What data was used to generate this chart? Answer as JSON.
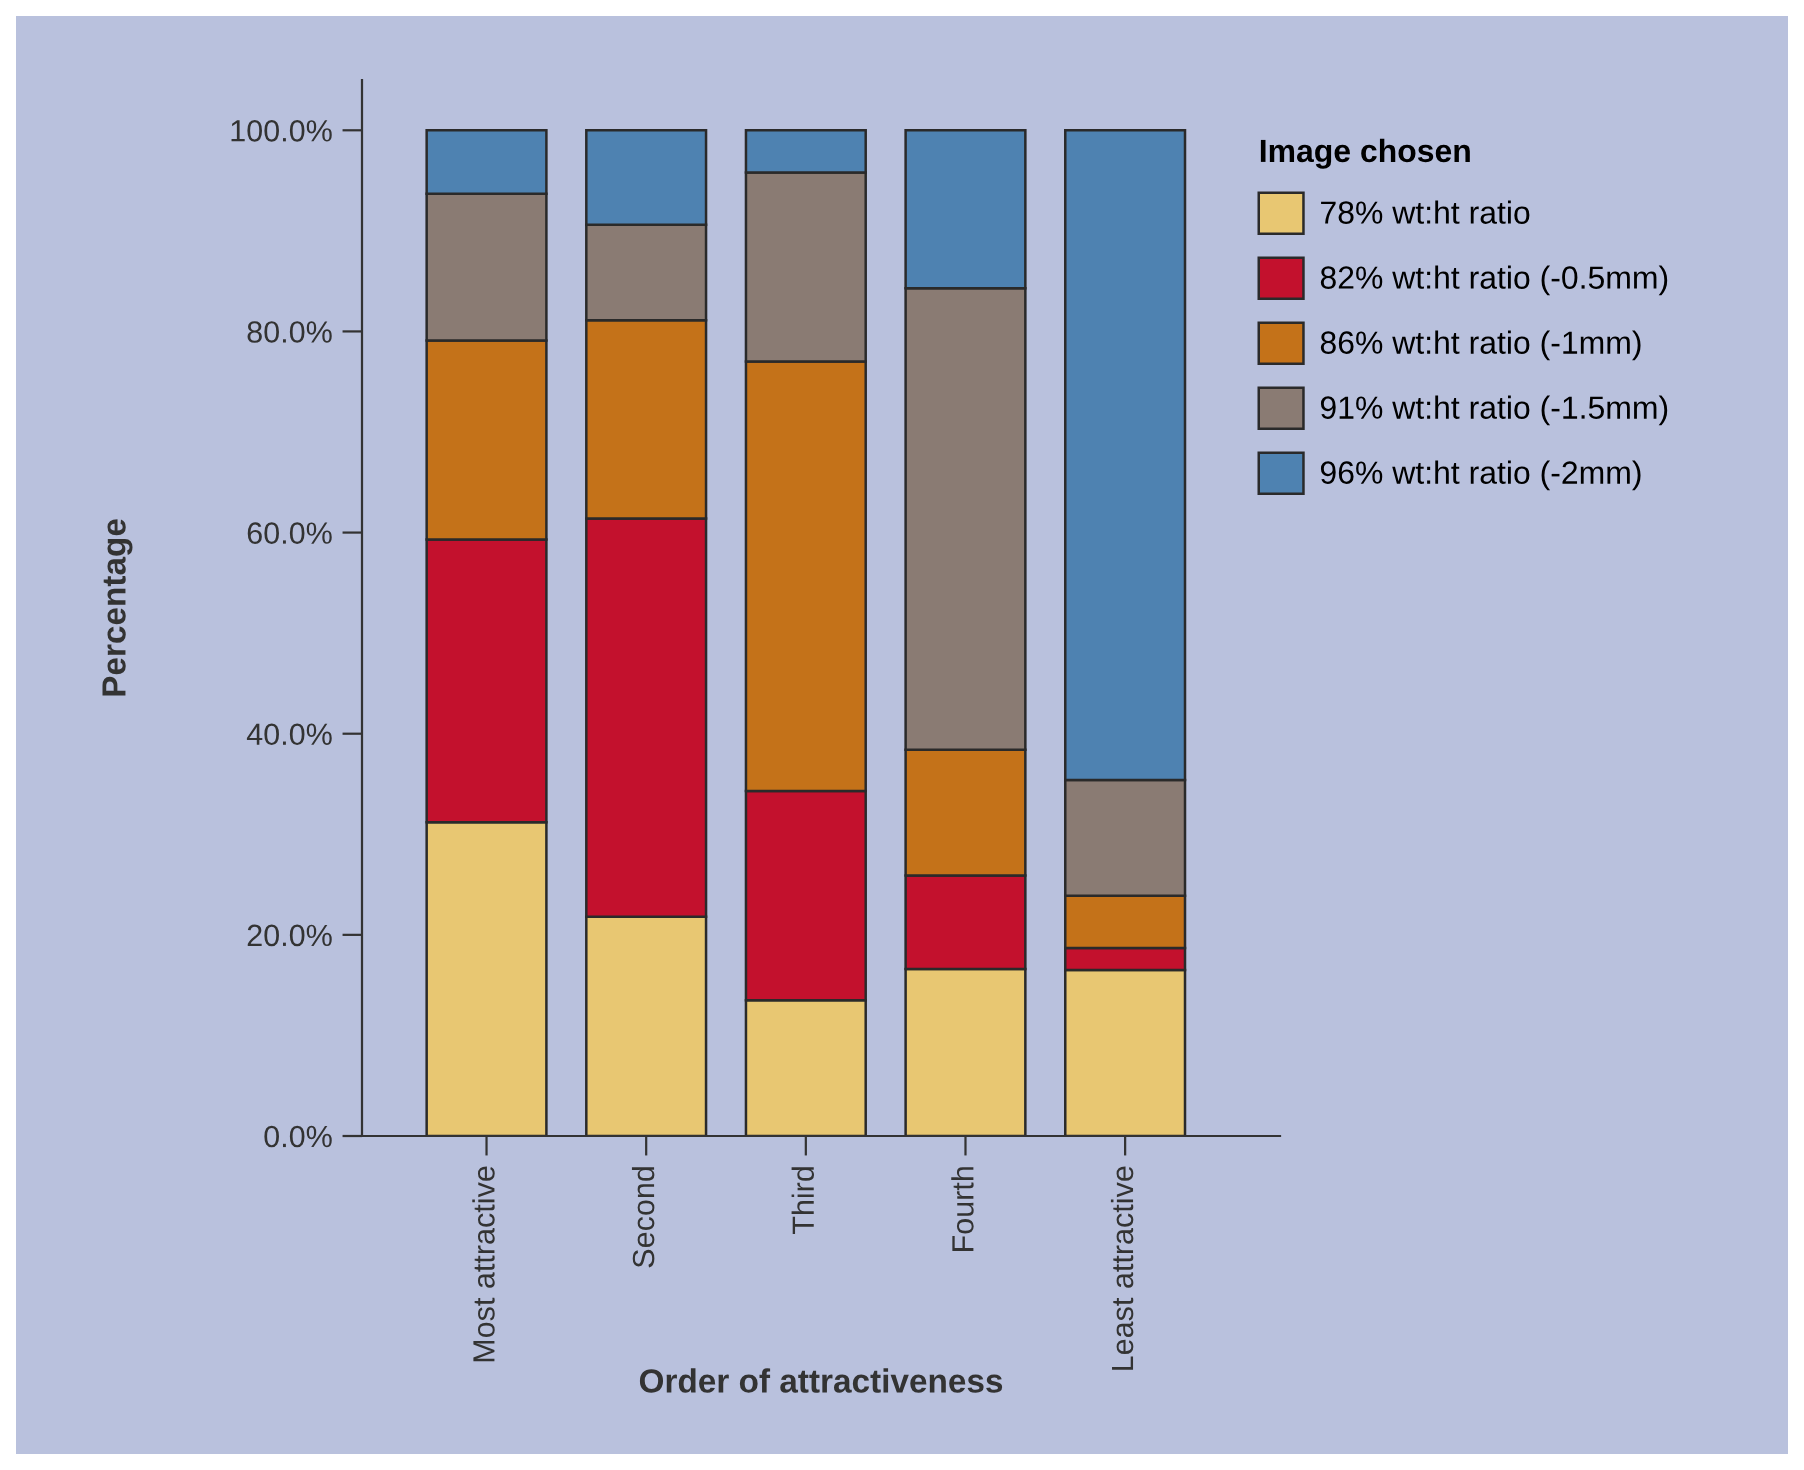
{
  "chart_data": {
    "type": "bar",
    "stacked": true,
    "xlabel": "Order of attractiveness",
    "ylabel": "Percentage",
    "legend_title": "Image chosen",
    "legend": "right",
    "grid": false,
    "categories": [
      "Most attractive",
      "Second",
      "Third",
      "Fourth",
      "Least attractive"
    ],
    "ylim": [
      0,
      105
    ],
    "yticks": [
      {
        "value": 0,
        "label": "0.0%"
      },
      {
        "value": 20,
        "label": "20.0%"
      },
      {
        "value": 40,
        "label": "40.0%"
      },
      {
        "value": 60,
        "label": "60.0%"
      },
      {
        "value": 80,
        "label": "80.0%"
      },
      {
        "value": 100,
        "label": "100.0%"
      }
    ],
    "series": [
      {
        "name": "78% wt:ht ratio",
        "color": "#e8c772",
        "values": [
          31.2,
          21.8,
          13.5,
          16.6,
          16.5
        ]
      },
      {
        "name": "82% wt:ht ratio (-0.5mm)",
        "color": "#c3112d",
        "values": [
          28.1,
          39.6,
          20.8,
          9.3,
          2.2
        ]
      },
      {
        "name": "86% wt:ht ratio (-1mm)",
        "color": "#c47219",
        "values": [
          19.8,
          19.7,
          42.7,
          12.5,
          5.2
        ]
      },
      {
        "name": "91% wt:ht ratio (-1.5mm)",
        "color": "#8a7b73",
        "values": [
          14.6,
          9.5,
          18.8,
          45.9,
          11.5
        ]
      },
      {
        "name": "96% wt:ht ratio (-2mm)",
        "color": "#4e82b1",
        "values": [
          6.3,
          9.4,
          4.2,
          15.7,
          64.6
        ]
      }
    ]
  }
}
